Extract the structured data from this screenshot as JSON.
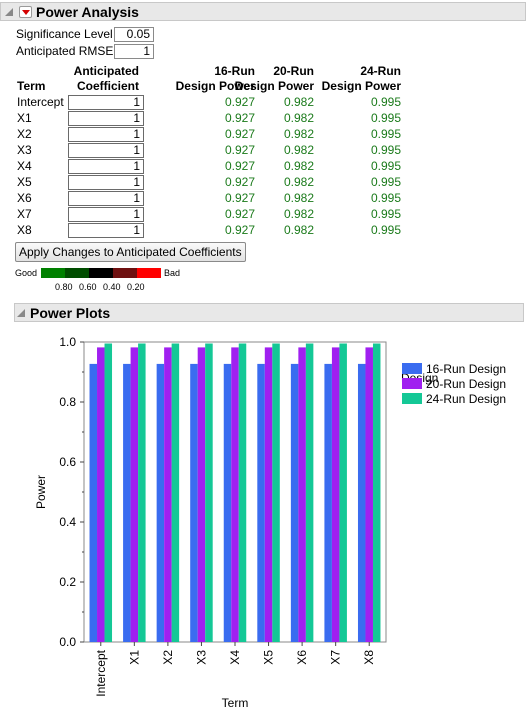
{
  "power_analysis": {
    "title": "Power Analysis",
    "significance_label": "Significance Level",
    "significance_value": "0.05",
    "rmse_label": "Anticipated RMSE",
    "rmse_value": "1",
    "headers": {
      "term": "Term",
      "coef_line1": "Anticipated",
      "coef_line2": "Coefficient",
      "d16_line1": "16-Run",
      "d16_line2": "Design Power",
      "d20_line1": "20-Run",
      "d20_line2": "Design Power",
      "d24_line1": "24-Run",
      "d24_line2": "Design Power"
    },
    "rows": [
      {
        "term": "Intercept",
        "coef": "1",
        "p16": "0.927",
        "p20": "0.982",
        "p24": "0.995"
      },
      {
        "term": "X1",
        "coef": "1",
        "p16": "0.927",
        "p20": "0.982",
        "p24": "0.995"
      },
      {
        "term": "X2",
        "coef": "1",
        "p16": "0.927",
        "p20": "0.982",
        "p24": "0.995"
      },
      {
        "term": "X3",
        "coef": "1",
        "p16": "0.927",
        "p20": "0.982",
        "p24": "0.995"
      },
      {
        "term": "X4",
        "coef": "1",
        "p16": "0.927",
        "p20": "0.982",
        "p24": "0.995"
      },
      {
        "term": "X5",
        "coef": "1",
        "p16": "0.927",
        "p20": "0.982",
        "p24": "0.995"
      },
      {
        "term": "X6",
        "coef": "1",
        "p16": "0.927",
        "p20": "0.982",
        "p24": "0.995"
      },
      {
        "term": "X7",
        "coef": "1",
        "p16": "0.927",
        "p20": "0.982",
        "p24": "0.995"
      },
      {
        "term": "X8",
        "coef": "1",
        "p16": "0.927",
        "p20": "0.982",
        "p24": "0.995"
      }
    ],
    "apply_button": "Apply Changes to Anticipated Coefficients",
    "color_legend": {
      "good": "Good",
      "bad": "Bad",
      "ticks": [
        "0.80",
        "0.60",
        "0.40",
        "0.20"
      ],
      "colors": [
        "#008000",
        "#004d00",
        "#000000",
        "#6e1010",
        "#ff0000"
      ]
    }
  },
  "power_plots": {
    "title": "Power Plots"
  },
  "chart_data": {
    "type": "bar",
    "categories": [
      "Intercept",
      "X1",
      "X2",
      "X3",
      "X4",
      "X5",
      "X6",
      "X7",
      "X8"
    ],
    "series": [
      {
        "name": "16-Run Design",
        "color": "#3a6cf0",
        "values": [
          0.927,
          0.927,
          0.927,
          0.927,
          0.927,
          0.927,
          0.927,
          0.927,
          0.927
        ]
      },
      {
        "name": "20-Run Design",
        "color": "#a020f0",
        "values": [
          0.982,
          0.982,
          0.982,
          0.982,
          0.982,
          0.982,
          0.982,
          0.982,
          0.982
        ]
      },
      {
        "name": "24-Run Design",
        "color": "#14c896",
        "values": [
          0.995,
          0.995,
          0.995,
          0.995,
          0.995,
          0.995,
          0.995,
          0.995,
          0.995
        ]
      }
    ],
    "xlabel": "Term",
    "ylabel": "Power",
    "ylim": [
      0,
      1
    ],
    "yticks": [
      "0.0",
      "0.2",
      "0.4",
      "0.6",
      "0.8",
      "1.0"
    ],
    "legend_title": "Design",
    "legend_position": "right",
    "grid": false
  }
}
